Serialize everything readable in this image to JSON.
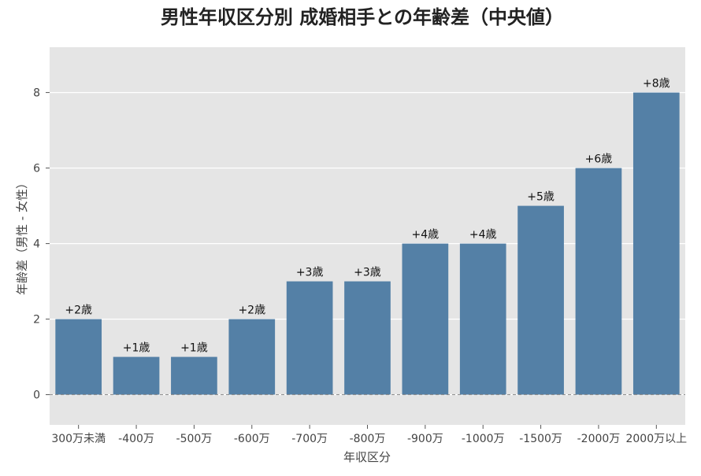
{
  "chart_data": {
    "type": "bar",
    "title": "男性年収区分別 成婚相手との年齢差（中央値）",
    "xlabel": "年収区分",
    "ylabel": "年齢差（男性 - 女性）",
    "categories": [
      "300万未満",
      "-400万",
      "-500万",
      "-600万",
      "-700万",
      "-800万",
      "-900万",
      "-1000万",
      "-1500万",
      "-2000万",
      "2000万以上"
    ],
    "values": [
      2,
      1,
      1,
      2,
      3,
      3,
      4,
      4,
      5,
      6,
      8
    ],
    "data_labels": [
      "+2歳",
      "+1歳",
      "+1歳",
      "+2歳",
      "+3歳",
      "+3歳",
      "+4歳",
      "+4歳",
      "+5歳",
      "+6歳",
      "+8歳"
    ],
    "ylim": [
      -0.8,
      9.2
    ],
    "yticks": [
      0,
      2,
      4,
      6,
      8
    ],
    "grid": true,
    "reference_line": 0,
    "colors": {
      "bar": "#5480a6",
      "plot_background": "#e5e5e5",
      "grid": "#ffffff",
      "reference_line": "#888888"
    }
  }
}
